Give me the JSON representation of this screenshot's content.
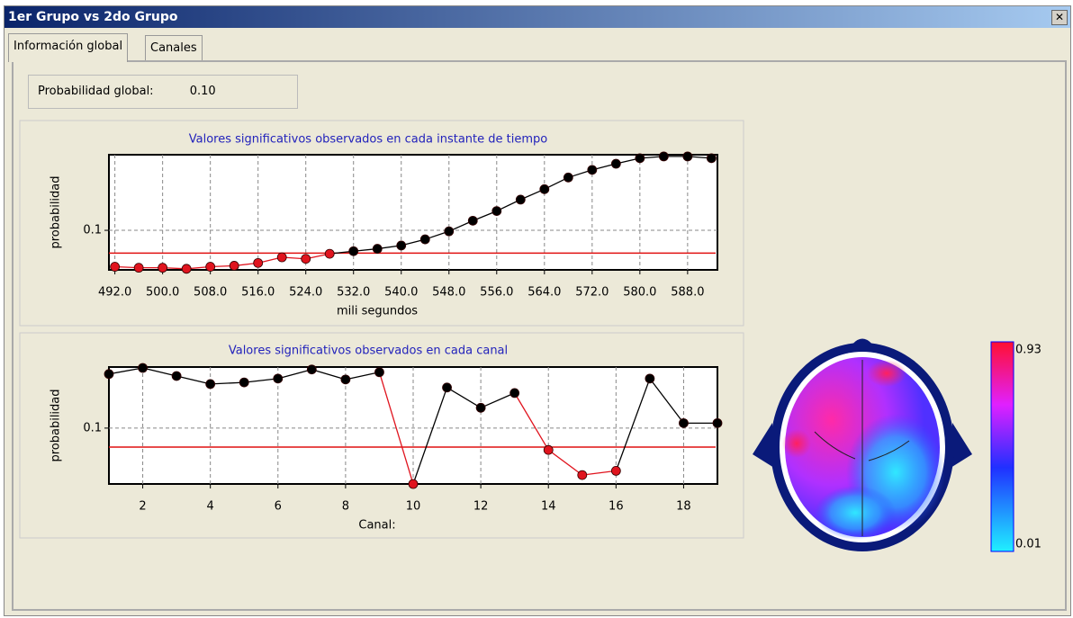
{
  "window": {
    "title": "1er Grupo  vs  2do Grupo",
    "tabs": [
      "Información global",
      "Canales"
    ],
    "global_probability": {
      "label": "Probabilidad global:",
      "value": "0.10"
    }
  },
  "chart_data": [
    {
      "type": "line",
      "title": "Valores significativos observados en cada instante de tiempo",
      "title_color": "#2222bb",
      "x_label": "mili segundos",
      "y_label": "probabilidad",
      "x": [
        492,
        496,
        500,
        504,
        508,
        512,
        516,
        520,
        524,
        528,
        532,
        536,
        540,
        544,
        548,
        552,
        556,
        560,
        564,
        568,
        572,
        576,
        580,
        584,
        588,
        592
      ],
      "values": [
        0.033,
        0.032,
        0.032,
        0.031,
        0.033,
        0.034,
        0.037,
        0.044,
        0.042,
        0.049,
        0.053,
        0.057,
        0.063,
        0.076,
        0.097,
        0.134,
        0.18,
        0.255,
        0.35,
        0.5,
        0.63,
        0.76,
        0.9,
        0.95,
        0.95,
        0.9
      ],
      "color": "#000000",
      "below_color": "#e0141e",
      "threshold": 0.05,
      "threshold_color": "#e01010",
      "xlim": [
        491,
        593
      ],
      "ylim": [
        0.03,
        1
      ],
      "log_y": true,
      "xticks": [
        {
          "value": 492,
          "label": "492.0"
        },
        {
          "value": 500,
          "label": "500.0"
        },
        {
          "value": 508,
          "label": "508.0"
        },
        {
          "value": 516,
          "label": "516.0"
        },
        {
          "value": 524,
          "label": "524.0"
        },
        {
          "value": 532,
          "label": "532.0"
        },
        {
          "value": 540,
          "label": "540.0"
        },
        {
          "value": 548,
          "label": "548.0"
        },
        {
          "value": 556,
          "label": "556.0"
        },
        {
          "value": 564,
          "label": "564.0"
        },
        {
          "value": 572,
          "label": "572.0"
        },
        {
          "value": 580,
          "label": "580.0"
        },
        {
          "value": 588,
          "label": "588.0"
        }
      ],
      "yticks": [
        0.1
      ],
      "grid": true
    },
    {
      "type": "line",
      "title": "Valores significativos observados en cada canal",
      "title_color": "#2222bb",
      "x_label": "Canal:",
      "y_label": "probabilidad",
      "x": [
        1,
        2,
        3,
        4,
        5,
        6,
        7,
        8,
        9,
        10,
        11,
        12,
        13,
        14,
        15,
        16,
        17,
        18,
        19
      ],
      "values": [
        0.72,
        0.9,
        0.67,
        0.5,
        0.53,
        0.61,
        0.85,
        0.59,
        0.77,
        0.013,
        0.44,
        0.21,
        0.36,
        0.045,
        0.018,
        0.021,
        0.61,
        0.12,
        0.12
      ],
      "color": "#000000",
      "below_color": "#e0141e",
      "threshold": 0.05,
      "threshold_color": "#e01010",
      "xlim": [
        1,
        19
      ],
      "ylim": [
        0.013,
        0.93
      ],
      "log_y": true,
      "xticks": [
        2,
        4,
        6,
        8,
        10,
        12,
        14,
        16,
        18
      ],
      "yticks": [
        0.1
      ],
      "grid": true
    }
  ],
  "colorbar": {
    "range": [
      0.01,
      0.93
    ]
  }
}
